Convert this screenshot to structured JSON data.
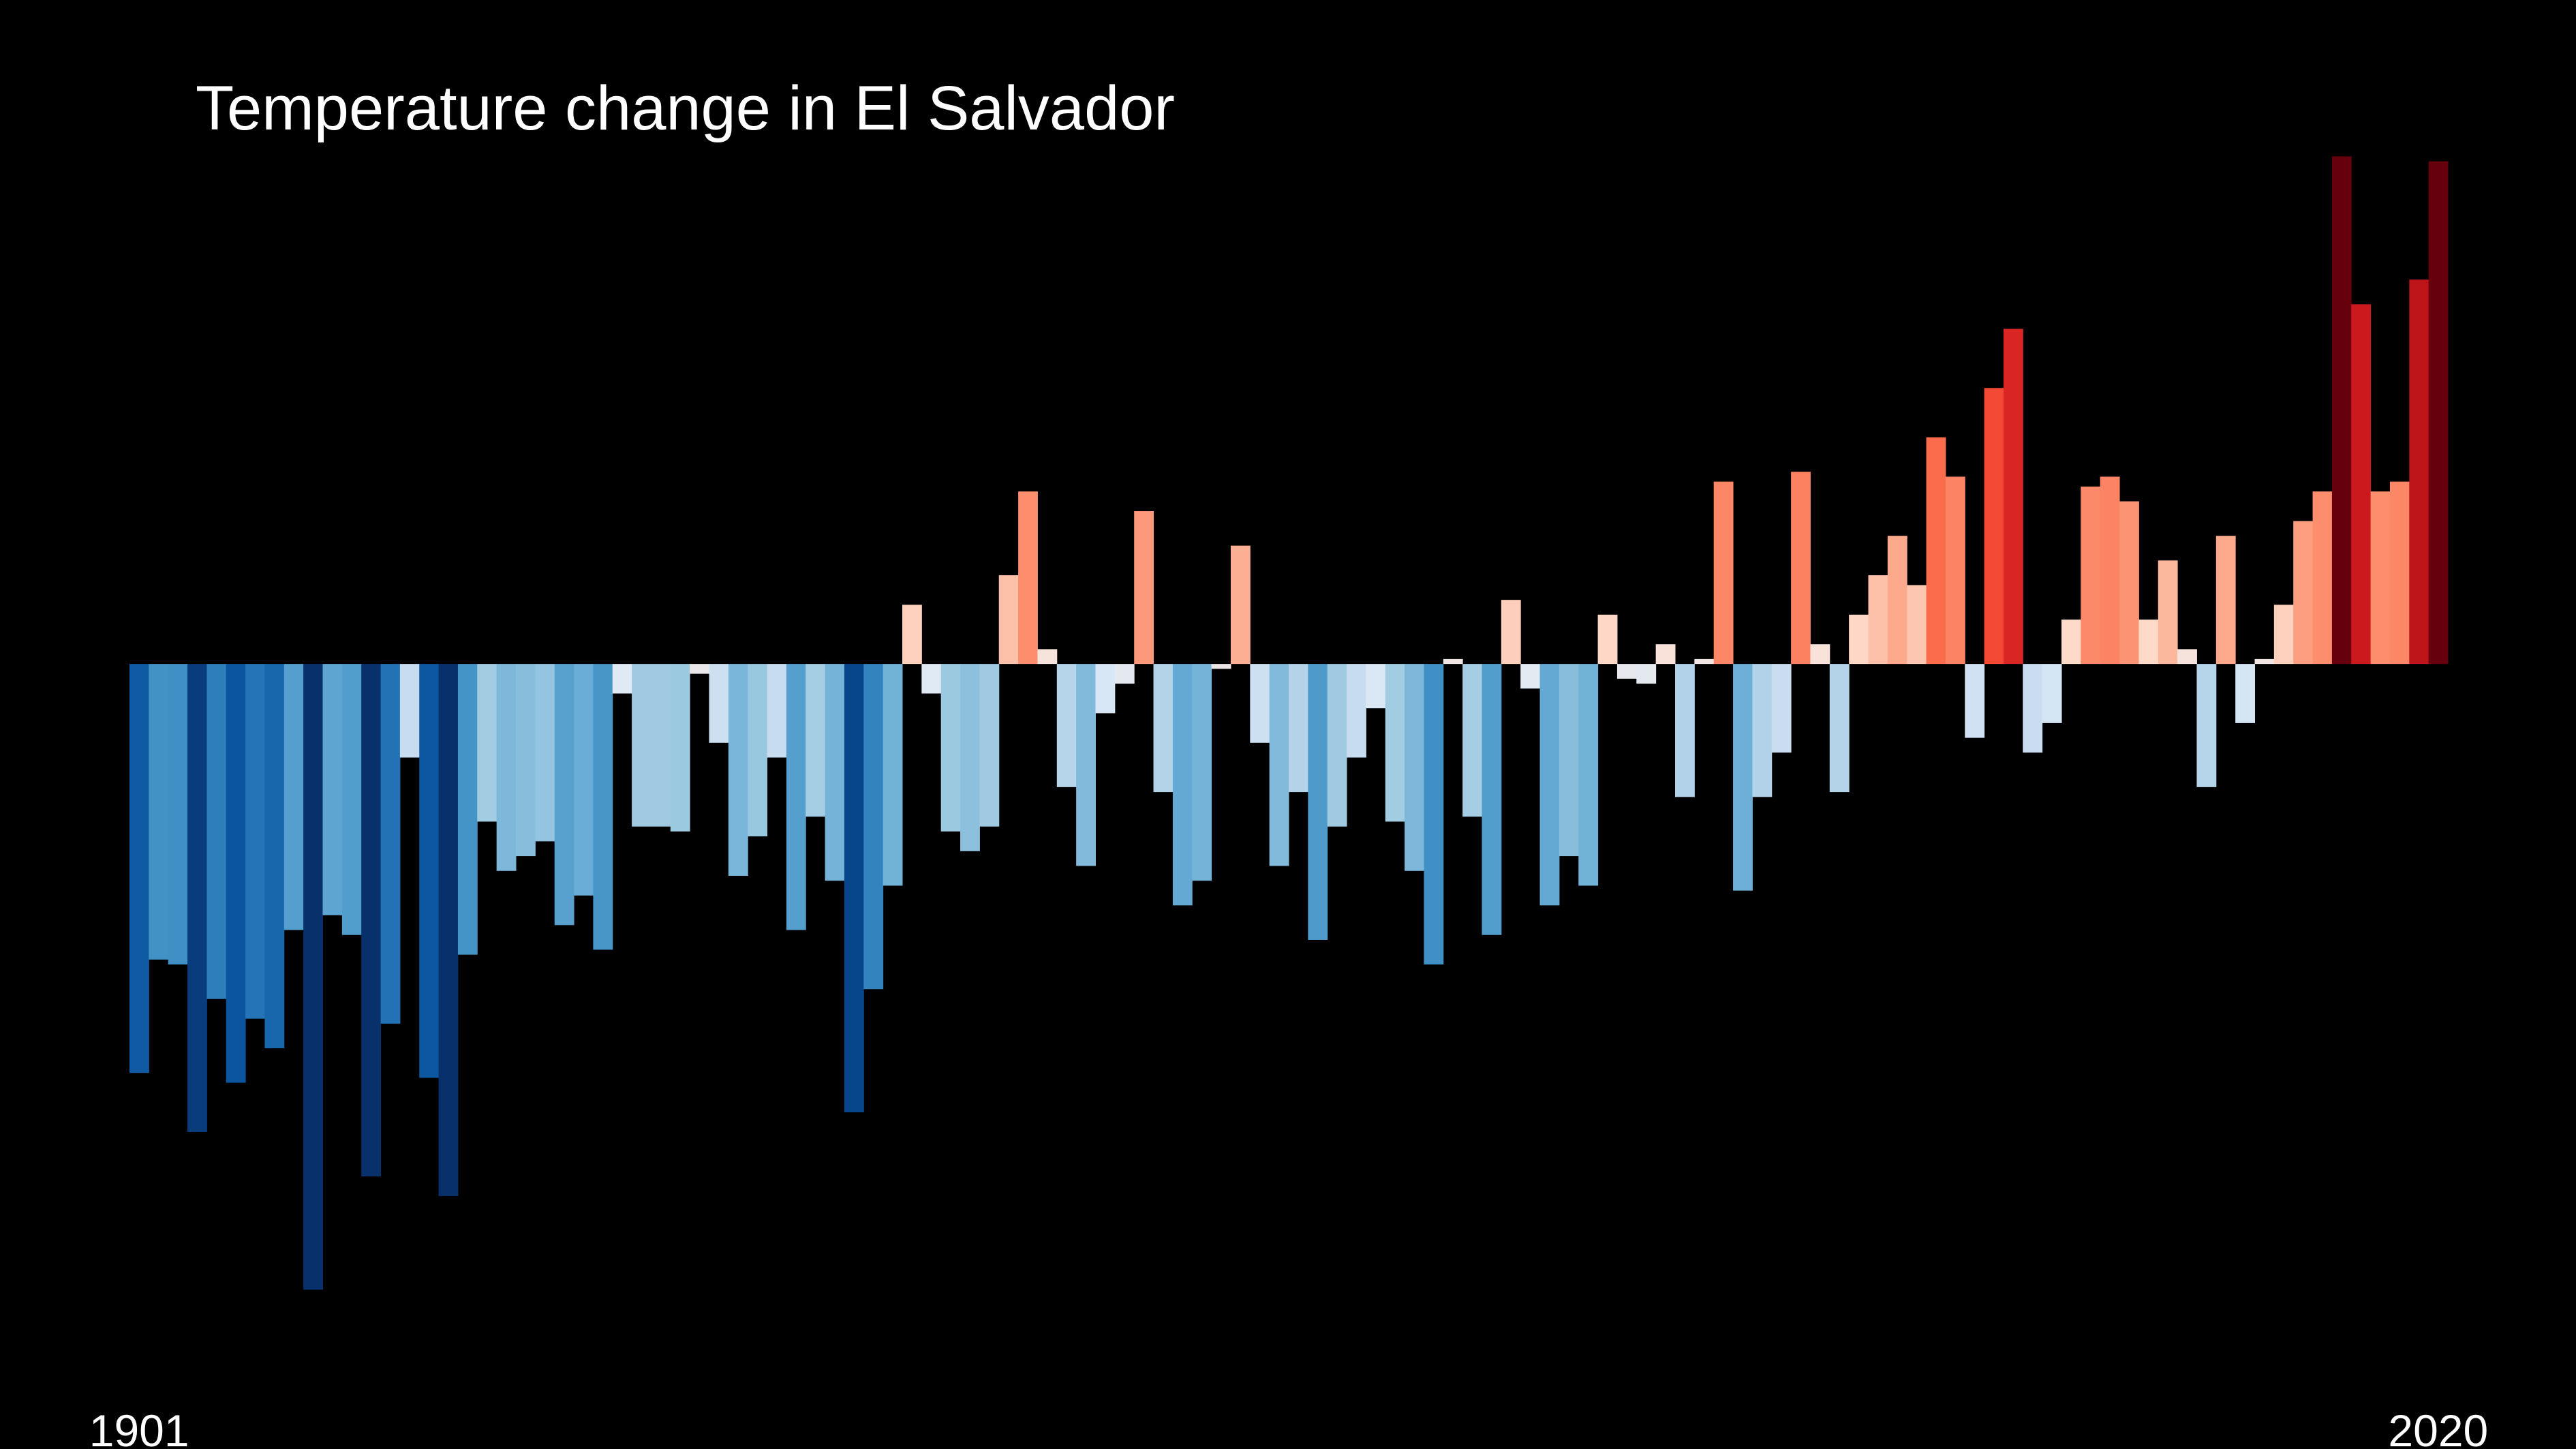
{
  "chart_data": {
    "type": "bar",
    "title": "Temperature change in El Salvador",
    "categories": [
      "1901",
      null,
      null,
      null,
      null,
      null,
      null,
      null,
      null,
      null,
      null,
      null,
      null,
      null,
      null,
      null,
      null,
      null,
      null,
      null,
      null,
      null,
      null,
      null,
      null,
      null,
      null,
      null,
      null,
      null,
      null,
      null,
      null,
      null,
      null,
      null,
      null,
      null,
      null,
      null,
      null,
      null,
      null,
      null,
      null,
      null,
      null,
      null,
      null,
      null,
      null,
      null,
      null,
      null,
      null,
      null,
      null,
      null,
      null,
      null,
      null,
      null,
      null,
      null,
      null,
      null,
      null,
      null,
      null,
      null,
      null,
      null,
      null,
      null,
      null,
      null,
      null,
      null,
      null,
      null,
      null,
      null,
      null,
      null,
      null,
      null,
      null,
      null,
      null,
      null,
      null,
      null,
      null,
      null,
      null,
      null,
      null,
      null,
      null,
      null,
      null,
      null,
      null,
      null,
      null,
      null,
      null,
      null,
      null,
      null,
      null,
      null,
      null,
      null,
      null,
      null,
      null,
      null,
      null,
      "2020"
    ],
    "values": [
      -0.83,
      -0.6,
      -0.61,
      -0.95,
      -0.68,
      -0.85,
      -0.72,
      -0.78,
      -0.54,
      -1.27,
      -0.51,
      -0.55,
      -1.04,
      -0.73,
      -0.19,
      -0.84,
      -1.08,
      -0.59,
      -0.32,
      -0.42,
      -0.39,
      -0.36,
      -0.53,
      -0.47,
      -0.58,
      -0.06,
      -0.33,
      -0.33,
      -0.34,
      -0.02,
      -0.16,
      -0.43,
      -0.35,
      -0.19,
      -0.54,
      -0.31,
      -0.44,
      -0.91,
      -0.66,
      -0.45,
      0.12,
      -0.06,
      -0.34,
      -0.38,
      -0.33,
      0.18,
      0.35,
      0.03,
      -0.25,
      -0.41,
      -0.1,
      -0.04,
      0.31,
      -0.26,
      -0.49,
      -0.44,
      -0.01,
      0.24,
      -0.16,
      -0.41,
      -0.26,
      -0.56,
      -0.33,
      -0.19,
      -0.09,
      -0.32,
      -0.42,
      -0.61,
      0.01,
      -0.31,
      -0.55,
      0.13,
      -0.05,
      -0.49,
      -0.39,
      -0.45,
      0.1,
      -0.03,
      -0.04,
      0.04,
      -0.27,
      0.01,
      0.37,
      -0.46,
      -0.27,
      -0.18,
      0.39,
      0.04,
      -0.26,
      0.1,
      0.18,
      0.26,
      0.16,
      0.46,
      0.38,
      -0.15,
      0.56,
      0.68,
      -0.18,
      -0.12,
      0.09,
      0.36,
      0.38,
      0.33,
      0.09,
      0.21,
      0.03,
      -0.25,
      0.26,
      -0.12,
      0.01,
      0.12,
      0.29,
      0.35,
      1.03,
      0.73,
      0.35,
      0.37,
      0.78,
      1.02
    ],
    "ylim": [
      -1.3,
      1.05
    ],
    "clim": [
      -1,
      1
    ],
    "colormap": [
      "#08306b",
      "#08519c",
      "#2171b5",
      "#4292c6",
      "#6baed6",
      "#9ecae1",
      "#c6dbef",
      "#deebf7",
      "#fee0d2",
      "#fcbba1",
      "#fc9272",
      "#fb6a4a",
      "#ef3b2c",
      "#cb181d",
      "#a50f15",
      "#67000d"
    ],
    "background": "#000000",
    "text_color": "#ffffff"
  }
}
